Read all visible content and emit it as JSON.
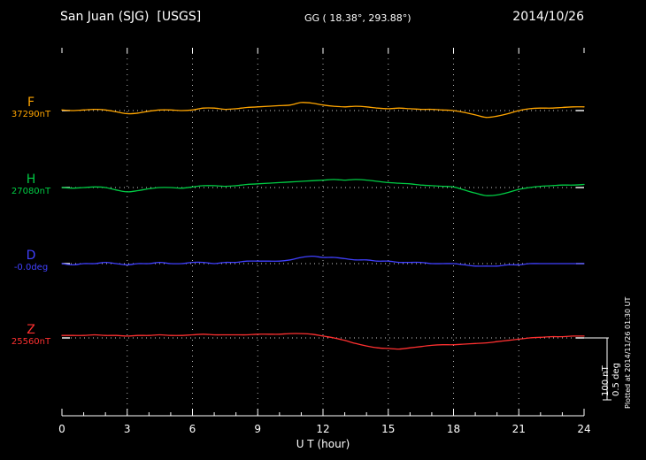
{
  "header": {
    "station": "San Juan (SJG)  [USGS]",
    "gg": "GG ( 18.38°, 293.88°)",
    "date": "2014/10/26"
  },
  "side": {
    "plotted_at": "Plotted at 2014/11/26 01:30 UT"
  },
  "chart_data": {
    "type": "line",
    "title": "San Juan (SJG) [USGS] magnetogram 2014/10/26",
    "xlabel": "U T (hour)",
    "x_start": 0,
    "x_step_hours": 0.5,
    "x_range": [
      0,
      24
    ],
    "x_ticks": [
      0,
      3,
      6,
      9,
      12,
      15,
      18,
      21,
      24
    ],
    "grid": "vertical-dotted",
    "background": "#000000",
    "legend_position": "left",
    "scale_bar": {
      "nT_label": "100 nT",
      "deg_label": "0.5 deg",
      "nT": 100,
      "deg": 0.5
    },
    "series": [
      {
        "name": "F",
        "units": "nT",
        "baseline_label": "37290nT",
        "baseline_value": 37290,
        "color": "#ffa500",
        "values": [
          1,
          0,
          1,
          2,
          1,
          -2,
          -5,
          -4,
          -1,
          1,
          1,
          0,
          1,
          4,
          4,
          2,
          3,
          5,
          6,
          7,
          8,
          9,
          13,
          12,
          9,
          7,
          6,
          7,
          6,
          4,
          3,
          4,
          3,
          2,
          2,
          1,
          0,
          -3,
          -7,
          -11,
          -9,
          -5,
          0,
          3,
          4,
          4,
          5,
          6,
          6
        ]
      },
      {
        "name": "H",
        "units": "nT",
        "baseline_label": "27080nT",
        "baseline_value": 27080,
        "color": "#00cc44",
        "values": [
          0,
          -1,
          0,
          1,
          0,
          -4,
          -7,
          -5,
          -2,
          0,
          0,
          -1,
          1,
          3,
          3,
          2,
          3,
          5,
          6,
          7,
          8,
          9,
          10,
          11,
          12,
          13,
          12,
          13,
          12,
          10,
          8,
          7,
          6,
          4,
          3,
          2,
          1,
          -4,
          -9,
          -13,
          -12,
          -8,
          -3,
          0,
          2,
          3,
          4,
          4,
          5
        ]
      },
      {
        "name": "D",
        "units": "deg",
        "baseline_label": "-0.0deg",
        "baseline_value": 0,
        "color": "#4040ff",
        "values": [
          0,
          -0.01,
          0,
          0,
          0.01,
          0,
          -0.01,
          0,
          0,
          0.01,
          0,
          0,
          0.01,
          0.01,
          0,
          0.01,
          0.01,
          0.02,
          0.02,
          0.02,
          0.02,
          0.03,
          0.05,
          0.06,
          0.05,
          0.05,
          0.04,
          0.03,
          0.03,
          0.02,
          0.02,
          0.01,
          0.01,
          0.01,
          0,
          0,
          0,
          -0.01,
          -0.02,
          -0.02,
          -0.02,
          -0.01,
          -0.01,
          0,
          0,
          0,
          0,
          0,
          0
        ]
      },
      {
        "name": "Z",
        "units": "nT",
        "baseline_label": "25560nT",
        "baseline_value": 25560,
        "color": "#ff3030",
        "values": [
          4,
          4,
          4,
          5,
          4,
          4,
          3,
          4,
          4,
          5,
          4,
          4,
          5,
          6,
          5,
          5,
          5,
          5,
          6,
          6,
          6,
          7,
          7,
          6,
          3,
          0,
          -4,
          -9,
          -13,
          -16,
          -17,
          -18,
          -16,
          -14,
          -12,
          -11,
          -11,
          -10,
          -9,
          -8,
          -6,
          -4,
          -2,
          0,
          1,
          2,
          2,
          3,
          3
        ]
      }
    ]
  }
}
